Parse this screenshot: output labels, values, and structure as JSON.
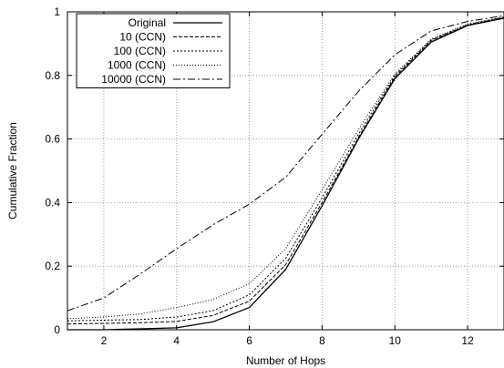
{
  "chart_data": {
    "type": "line",
    "title": "",
    "xlabel": "Number of Hops",
    "ylabel": "Cumulative Fraction",
    "xlim": [
      1,
      13
    ],
    "ylim": [
      0,
      1
    ],
    "x_ticks": [
      2,
      4,
      6,
      8,
      10,
      12
    ],
    "y_ticks": [
      0,
      0.2,
      0.4,
      0.6,
      0.8,
      1
    ],
    "x_tick_labels": [
      "2",
      "4",
      "6",
      "8",
      "10",
      "12"
    ],
    "y_tick_labels": [
      "0",
      "0.2",
      "0.4",
      "0.6",
      "0.8",
      "1"
    ],
    "grid": true,
    "legend_position": "top-left",
    "x": [
      1,
      2,
      3,
      4,
      5,
      6,
      7,
      8,
      9,
      10,
      11,
      12,
      13
    ],
    "series": [
      {
        "name": "Original",
        "dash": "solid",
        "values": [
          0.0,
          0.0,
          0.003,
          0.006,
          0.025,
          0.07,
          0.19,
          0.39,
          0.6,
          0.79,
          0.905,
          0.957,
          0.98
        ]
      },
      {
        "name": "10 (CCN)",
        "dash": "dashed",
        "values": [
          0.018,
          0.02,
          0.022,
          0.026,
          0.045,
          0.09,
          0.205,
          0.4,
          0.605,
          0.795,
          0.91,
          0.958,
          0.982
        ]
      },
      {
        "name": "100 (CCN)",
        "dash": "dotted",
        "values": [
          0.028,
          0.03,
          0.032,
          0.04,
          0.06,
          0.11,
          0.225,
          0.415,
          0.615,
          0.8,
          0.912,
          0.96,
          0.983
        ]
      },
      {
        "name": "1000 (CCN)",
        "dash": "fine-dotted",
        "values": [
          0.035,
          0.04,
          0.05,
          0.07,
          0.095,
          0.145,
          0.255,
          0.44,
          0.63,
          0.805,
          0.915,
          0.962,
          0.984
        ]
      },
      {
        "name": "10000 (CCN)",
        "dash": "dash-dot",
        "values": [
          0.06,
          0.1,
          0.175,
          0.255,
          0.33,
          0.395,
          0.48,
          0.615,
          0.75,
          0.865,
          0.94,
          0.97,
          0.988
        ]
      }
    ]
  }
}
